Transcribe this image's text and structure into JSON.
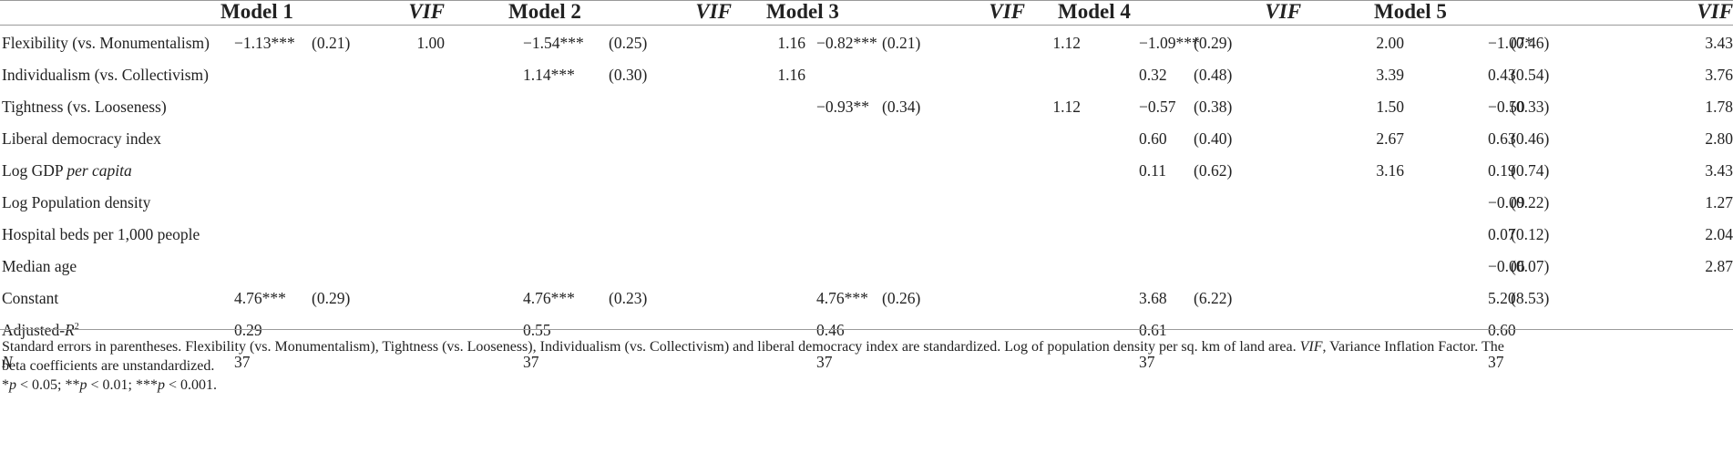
{
  "headers": {
    "model1": "Model 1",
    "vif1": "VIF",
    "model2": "Model 2",
    "vif2": "VIF",
    "model3": "Model 3",
    "vif3": "VIF",
    "model4": "Model 4",
    "vif4": "VIF",
    "model5": "Model 5",
    "vif5": "VIF"
  },
  "rows": [
    {
      "label": "Flexibility (vs. Monumentalism)",
      "m1": [
        "−1.13***",
        "(0.21)",
        "1.00"
      ],
      "m2": [
        "−1.54***",
        "(0.25)",
        "1.16"
      ],
      "m3": [
        "−0.82***",
        "(0.21)",
        "1.12"
      ],
      "m4": [
        "−1.09***",
        "(0.29)",
        "2.00"
      ],
      "m5": [
        "−1.07*",
        "(0.46)",
        "3.43"
      ]
    },
    {
      "label": "Individualism (vs. Collectivism)",
      "m1": [
        "",
        "",
        ""
      ],
      "m2": [
        "1.14***",
        "(0.30)",
        "1.16"
      ],
      "m3": [
        "",
        "",
        ""
      ],
      "m4": [
        "0.32",
        "(0.48)",
        "3.39"
      ],
      "m5": [
        "0.43",
        "(0.54)",
        "3.76"
      ]
    },
    {
      "label": "Tightness (vs. Looseness)",
      "m1": [
        "",
        "",
        ""
      ],
      "m2": [
        "",
        "",
        ""
      ],
      "m3": [
        "−0.93**",
        "(0.34)",
        "1.12"
      ],
      "m4": [
        "−0.57",
        "(0.38)",
        "1.50"
      ],
      "m5": [
        "−0.50",
        "(0.33)",
        "1.78"
      ]
    },
    {
      "label": "Liberal democracy index",
      "m1": [
        "",
        "",
        ""
      ],
      "m2": [
        "",
        "",
        ""
      ],
      "m3": [
        "",
        "",
        ""
      ],
      "m4": [
        "0.60",
        "(0.40)",
        "2.67"
      ],
      "m5": [
        "0.63",
        "(0.46)",
        "2.80"
      ]
    },
    {
      "label_prefix": "Log GDP ",
      "label_italic": "per capita",
      "m1": [
        "",
        "",
        ""
      ],
      "m2": [
        "",
        "",
        ""
      ],
      "m3": [
        "",
        "",
        ""
      ],
      "m4": [
        "0.11",
        "(0.62)",
        "3.16"
      ],
      "m5": [
        "0.19",
        "(0.74)",
        "3.43"
      ]
    },
    {
      "label": "Log Population density",
      "m1": [
        "",
        "",
        ""
      ],
      "m2": [
        "",
        "",
        ""
      ],
      "m3": [
        "",
        "",
        ""
      ],
      "m4": [
        "",
        "",
        ""
      ],
      "m5": [
        "−0.09",
        "(0.22)",
        "1.27"
      ]
    },
    {
      "label": "Hospital beds per 1,000 people",
      "m1": [
        "",
        "",
        ""
      ],
      "m2": [
        "",
        "",
        ""
      ],
      "m3": [
        "",
        "",
        ""
      ],
      "m4": [
        "",
        "",
        ""
      ],
      "m5": [
        "0.07",
        "(0.12)",
        "2.04"
      ]
    },
    {
      "label": "Median age",
      "m1": [
        "",
        "",
        ""
      ],
      "m2": [
        "",
        "",
        ""
      ],
      "m3": [
        "",
        "",
        ""
      ],
      "m4": [
        "",
        "",
        ""
      ],
      "m5": [
        "−0.06",
        "(0.07)",
        "2.87"
      ]
    },
    {
      "label": "Constant",
      "m1": [
        "4.76***",
        "(0.29)",
        ""
      ],
      "m2": [
        "4.76***",
        "(0.23)",
        ""
      ],
      "m3": [
        "4.76***",
        "(0.26)",
        ""
      ],
      "m4": [
        "3.68",
        "(6.22)",
        ""
      ],
      "m5": [
        "5.20",
        "(8.53)",
        ""
      ]
    },
    {
      "label_prefix": "Adjusted-",
      "label_italic": "R",
      "label_sup": "2",
      "m1": [
        "0.29",
        "",
        ""
      ],
      "m2": [
        "0.55",
        "",
        ""
      ],
      "m3": [
        "0.46",
        "",
        ""
      ],
      "m4": [
        "0.61",
        "",
        ""
      ],
      "m5": [
        "0.60",
        "",
        ""
      ]
    },
    {
      "label_italic_only": "N",
      "m1": [
        "37",
        "",
        ""
      ],
      "m2": [
        "37",
        "",
        ""
      ],
      "m3": [
        "37",
        "",
        ""
      ],
      "m4": [
        "37",
        "",
        ""
      ],
      "m5": [
        "37",
        "",
        ""
      ]
    }
  ],
  "notes": {
    "line1_a": "Standard errors in parentheses. Flexibility (vs. Monumentalism), Tightness (vs. Looseness), Individualism (vs. Collectivism) and liberal democracy index are standardized. Log of population density per sq. km of land area. ",
    "line1_vif": "VIF",
    "line1_b": ", Variance Inflation Factor. The",
    "line2": "beta coefficients are unstandardized.",
    "sig_star1": "*",
    "sig_p1": "p",
    "sig_t1": " < 0.05; **",
    "sig_p2": "p",
    "sig_t2": " < 0.01; ***",
    "sig_p3": "p",
    "sig_t3": " < 0.001."
  }
}
